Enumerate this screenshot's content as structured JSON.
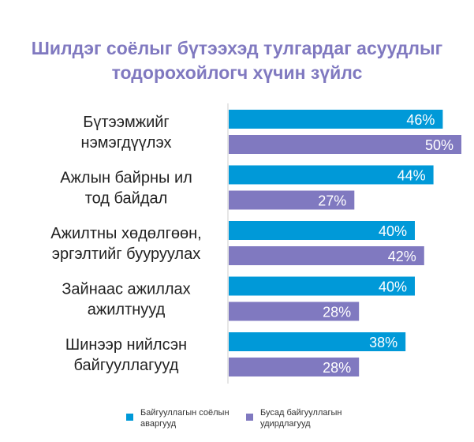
{
  "chart_data": {
    "type": "bar",
    "orientation": "horizontal",
    "title_lines": [
      "Шилдэг соёлыг бүтээхэд тулгардаг асуудлыг",
      "тодорохойлогч хүчин зүйлс"
    ],
    "categories": [
      [
        "Бүтээмжийг",
        "нэмэгдүүлэх"
      ],
      [
        "Ажлын байрны ил",
        "тод байдал"
      ],
      [
        "Ажилтны хөдөлгөөн,",
        "эргэлтийг бууруулах"
      ],
      [
        "Зайнаас ажиллах",
        "ажилтнууд"
      ],
      [
        "Шинээр нийлсэн",
        "байгууллагууд"
      ]
    ],
    "series": [
      {
        "name": "Байгууллагын соёлын аваргууд",
        "color": "#0099d8",
        "values": [
          46,
          44,
          40,
          40,
          38
        ],
        "labels": [
          "46%",
          "44%",
          "40%",
          "40%",
          "38%"
        ]
      },
      {
        "name": "Бусад байгууллагын удирдлагууд",
        "color": "#8079c0",
        "values": [
          50,
          27,
          42,
          28,
          28
        ],
        "labels": [
          "50%",
          "27%",
          "42%",
          "28%",
          "28%"
        ]
      }
    ],
    "xlim": [
      0,
      50
    ],
    "grid": false,
    "legend_position": "bottom"
  },
  "legend": [
    {
      "lines": [
        "Байгууллагын соёлын",
        "аваргууд"
      ],
      "color": "#0099d8"
    },
    {
      "lines": [
        "Бусад байгууллагын",
        "удирдлагууд"
      ],
      "color": "#8079c0"
    }
  ]
}
